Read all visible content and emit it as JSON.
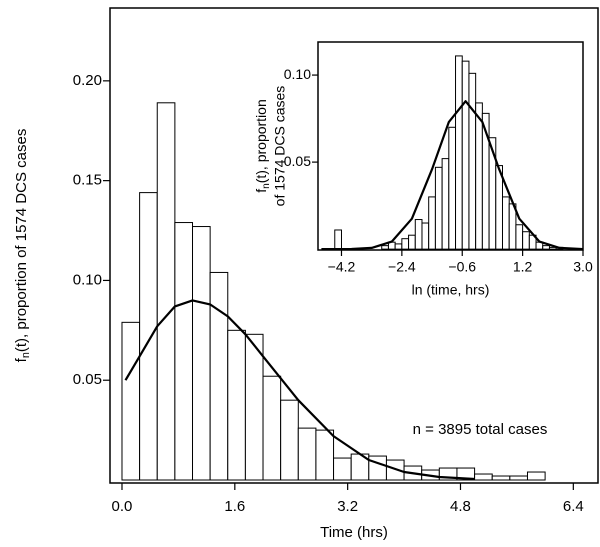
{
  "chart_data": [
    {
      "type": "histogram",
      "x_label": "Time (hrs)",
      "y_label": {
        "main": "f",
        "sub": "n",
        "rest": "(t), proportion of 1574  DCS cases"
      },
      "annotation": "n = 3895 total cases",
      "bins": [
        0,
        0.25,
        0.5,
        0.75,
        1,
        1.25,
        1.5,
        1.75,
        2,
        2.25,
        2.5,
        2.75,
        3,
        3.25,
        3.5,
        3.75,
        4,
        4.25,
        4.5,
        4.75,
        5,
        5.25,
        5.5,
        5.75,
        6
      ],
      "values": [
        0.079,
        0.144,
        0.189,
        0.129,
        0.127,
        0.104,
        0.075,
        0.073,
        0.052,
        0.04,
        0.026,
        0.025,
        0.011,
        0.013,
        0.012,
        0.01,
        0.007,
        0.005,
        0.006,
        0.006,
        0.003,
        0.002,
        0.002,
        0.004
      ],
      "curve": {
        "x": [
          0.05,
          0.25,
          0.5,
          0.75,
          1.0,
          1.25,
          1.5,
          1.75,
          2.0,
          2.5,
          3.0,
          3.5,
          4.0,
          4.5,
          5.0
        ],
        "y": [
          0.05,
          0.062,
          0.077,
          0.087,
          0.09,
          0.088,
          0.082,
          0.073,
          0.062,
          0.04,
          0.022,
          0.01,
          0.004,
          0.0015,
          0.0005
        ]
      },
      "xlim": [
        -0.17,
        6.75
      ],
      "ylim": [
        -0.0015,
        0.2365
      ],
      "xticks": [
        {
          "value": 0,
          "label": "0.0"
        },
        1.6,
        3.2,
        4.8,
        6.4
      ],
      "yticks": [
        0.05,
        {
          "value": 0.1,
          "label": "0.10"
        },
        0.15,
        {
          "value": 0.2,
          "label": "0.20"
        }
      ]
    },
    {
      "type": "histogram",
      "x_label": "ln (time, hrs)",
      "y_label": {
        "main": "f",
        "sub": "n",
        "rest": "(t), proportion",
        "line2": "of 1574 DCS cases"
      },
      "bins": [
        -4.4,
        -4.2,
        -4.0,
        -3.8,
        -3.6,
        -3.4,
        -3.2,
        -3.0,
        -2.8,
        -2.6,
        -2.4,
        -2.2,
        -2.0,
        -1.8,
        -1.6,
        -1.4,
        -1.2,
        -1.0,
        -0.8,
        -0.6,
        -0.4,
        -0.2,
        0.0,
        0.2,
        0.4,
        0.6,
        0.8,
        1.0,
        1.2,
        1.4,
        1.6,
        1.8,
        2.0,
        2.2,
        2.4
      ],
      "values": [
        0.011,
        0,
        0,
        0,
        0,
        0,
        0,
        0.002,
        0.004,
        0.003,
        0.006,
        0.008,
        0.017,
        0.015,
        0.03,
        0.047,
        0.052,
        0.07,
        0.111,
        0.108,
        0.101,
        0.084,
        0.078,
        0.064,
        0.048,
        0.03,
        0.026,
        0.014,
        0.01,
        0.008,
        0.004,
        0.002,
        0.001,
        0.001
      ],
      "curve": {
        "x": [
          -4.8,
          -3.9,
          -3.3,
          -2.7,
          -2.1,
          -1.5,
          -1.0,
          -0.5,
          0.0,
          0.5,
          1.1,
          1.7,
          2.3,
          3.0
        ],
        "y": [
          0,
          0.0001,
          0.0007,
          0.0043,
          0.0175,
          0.046,
          0.073,
          0.085,
          0.073,
          0.046,
          0.0175,
          0.0043,
          0.0007,
          0
        ]
      },
      "xlim": [
        -4.9,
        3.0
      ],
      "ylim": [
        -0.0005,
        0.119
      ],
      "xticks": [
        {
          "value": -4.2,
          "label": "−4.2"
        },
        {
          "value": -2.4,
          "label": "−2.4"
        },
        {
          "value": -0.6,
          "label": "−0.6"
        },
        1.2,
        {
          "value": 3,
          "label": "3.0"
        }
      ],
      "yticks": [
        0.05,
        {
          "value": 0.1,
          "label": "0.10"
        }
      ]
    }
  ]
}
